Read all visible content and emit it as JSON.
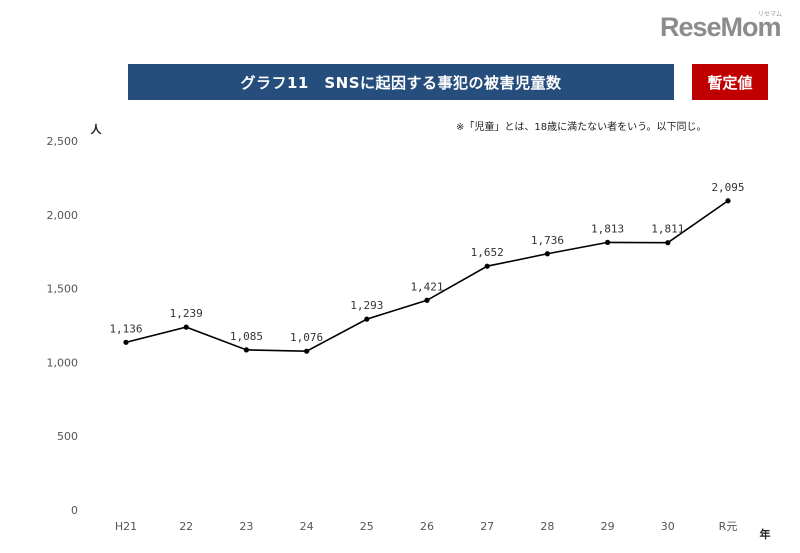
{
  "brand": {
    "logo_text": "ReseMom",
    "logo_kana": "リセマム"
  },
  "badge": {
    "label": "暫定値"
  },
  "note": "※「児童」とは、18歳に満たない者をいう。以下同じ。",
  "colors": {
    "title_bg": "#254e7d",
    "badge_bg": "#c00000",
    "line": "#000000"
  },
  "chart_data": {
    "type": "line",
    "title": "グラフ11　SNSに起因する事犯の被害児童数",
    "categories": [
      "H21",
      "22",
      "23",
      "24",
      "25",
      "26",
      "27",
      "28",
      "29",
      "30",
      "R元"
    ],
    "values": [
      1136,
      1239,
      1085,
      1076,
      1293,
      1421,
      1652,
      1736,
      1813,
      1811,
      2095
    ],
    "value_labels": [
      "1,136",
      "1,239",
      "1,085",
      "1,076",
      "1,293",
      "1,421",
      "1,652",
      "1,736",
      "1,813",
      "1,811",
      "2,095"
    ],
    "ylim": [
      0,
      2500
    ],
    "yticks": [
      0,
      500,
      1000,
      1500,
      2000,
      2500
    ],
    "ytick_labels": [
      "0",
      "500",
      "1,000",
      "1,500",
      "2,000",
      "2,500"
    ],
    "ylabel": "人",
    "xlabel": "年",
    "grid": false
  }
}
